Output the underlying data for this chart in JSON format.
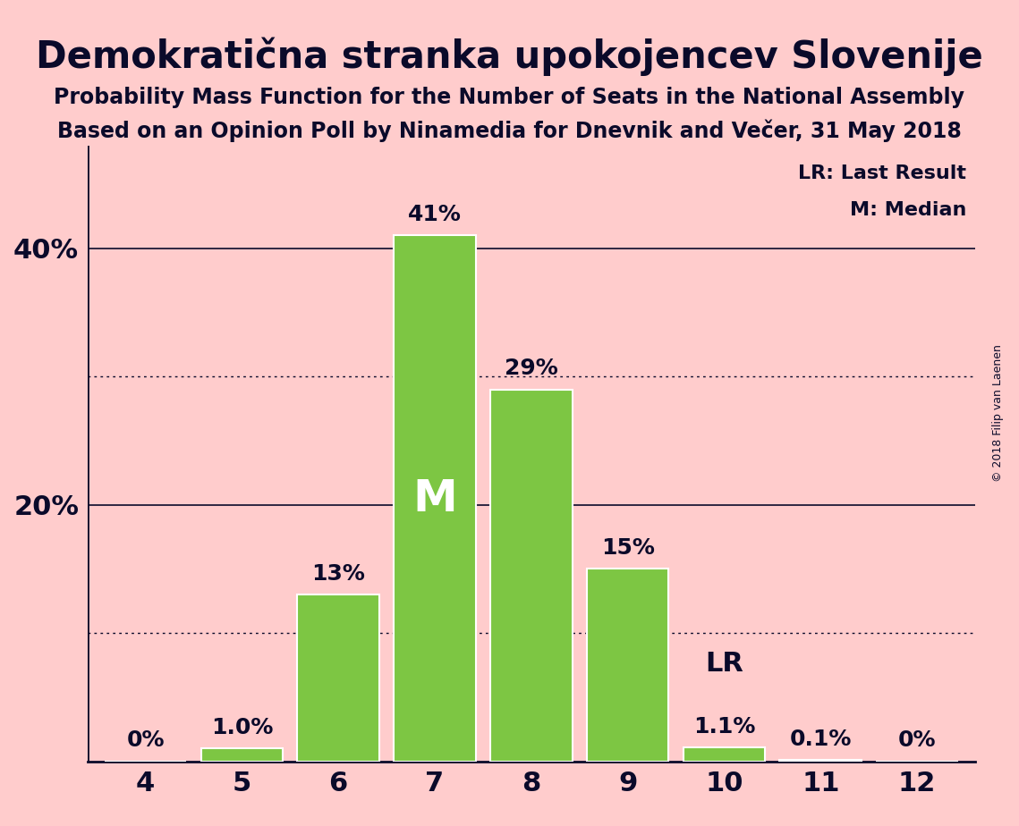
{
  "title": "Demokratična stranka upokojencev Slovenije",
  "subtitle1": "Probability Mass Function for the Number of Seats in the National Assembly",
  "subtitle2": "Based on an Opinion Poll by Ninamedia for Dnevnik and Večer, 31 May 2018",
  "copyright": "© 2018 Filip van Laenen",
  "seats": [
    4,
    5,
    6,
    7,
    8,
    9,
    10,
    11,
    12
  ],
  "values": [
    0.0,
    1.0,
    13.0,
    41.0,
    29.0,
    15.0,
    1.1,
    0.1,
    0.0
  ],
  "labels": [
    "0%",
    "1.0%",
    "13%",
    "41%",
    "29%",
    "15%",
    "1.1%",
    "0.1%",
    "0%"
  ],
  "bar_color": "#7DC643",
  "background_color": "#FFCCCC",
  "text_color": "#0A0A2A",
  "median_seat": 7,
  "last_result_seat": 10,
  "yticks": [
    0,
    10,
    20,
    30,
    40
  ],
  "ytick_labels": [
    "",
    "",
    "20%",
    "",
    "40%"
  ],
  "solid_grid": [
    20,
    40
  ],
  "dotted_grid": [
    10,
    30
  ],
  "legend_lr": "LR: Last Result",
  "legend_m": "M: Median"
}
